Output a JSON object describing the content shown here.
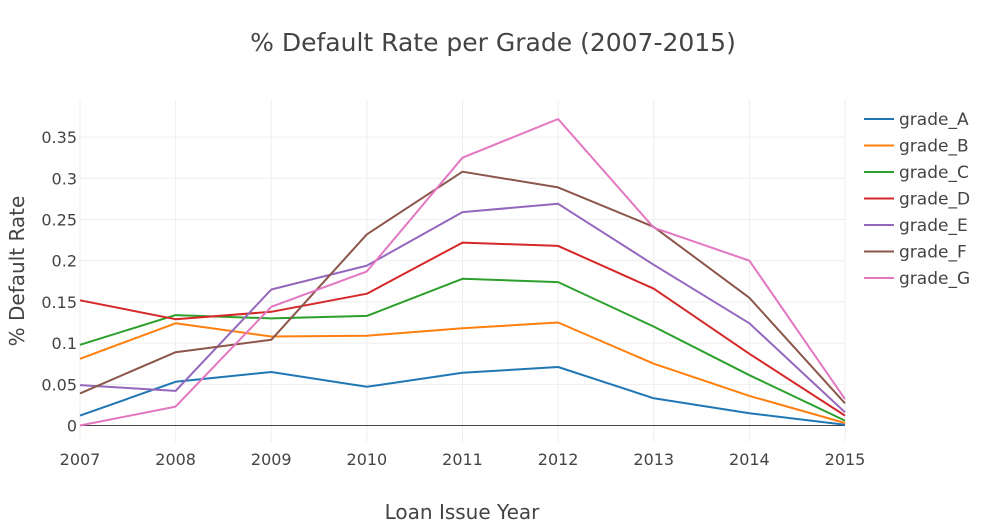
{
  "chart_data": {
    "type": "line",
    "title": "% Default Rate per Grade (2007-2015)",
    "xlabel": "Loan Issue Year",
    "ylabel": "% Default Rate",
    "x": [
      2007,
      2008,
      2009,
      2010,
      2011,
      2012,
      2013,
      2014,
      2015
    ],
    "x_ticks": [
      "2007",
      "2008",
      "2009",
      "2010",
      "2011",
      "2012",
      "2013",
      "2014",
      "2015"
    ],
    "xlim": [
      2007,
      2015
    ],
    "ylim": [
      -0.02,
      0.395
    ],
    "y_ticks": [
      0,
      0.05,
      0.1,
      0.15,
      0.2,
      0.25,
      0.3,
      0.35
    ],
    "y_tick_labels": [
      "0",
      "0.05",
      "0.1",
      "0.15",
      "0.2",
      "0.25",
      "0.3",
      "0.35"
    ],
    "grid": true,
    "legend_position": "right",
    "series": [
      {
        "name": "grade_A",
        "color": "#1f77b4",
        "values": [
          0.012,
          0.053,
          0.065,
          0.047,
          0.064,
          0.071,
          0.033,
          0.015,
          0.001
        ]
      },
      {
        "name": "grade_B",
        "color": "#ff7f0e",
        "values": [
          0.081,
          0.124,
          0.108,
          0.109,
          0.118,
          0.125,
          0.075,
          0.036,
          0.003
        ]
      },
      {
        "name": "grade_C",
        "color": "#2ca02c",
        "values": [
          0.098,
          0.134,
          0.13,
          0.133,
          0.178,
          0.174,
          0.12,
          0.061,
          0.006
        ]
      },
      {
        "name": "grade_D",
        "color": "#d62728",
        "values": [
          0.152,
          0.129,
          0.138,
          0.16,
          0.222,
          0.218,
          0.166,
          0.087,
          0.012
        ]
      },
      {
        "name": "grade_E",
        "color": "#9467bd",
        "values": [
          0.049,
          0.042,
          0.165,
          0.194,
          0.259,
          0.269,
          0.195,
          0.124,
          0.016
        ]
      },
      {
        "name": "grade_F",
        "color": "#8c564b",
        "values": [
          0.039,
          0.089,
          0.104,
          0.232,
          0.308,
          0.289,
          0.241,
          0.155,
          0.027
        ]
      },
      {
        "name": "grade_G",
        "color": "#e377c2",
        "values": [
          0.0,
          0.023,
          0.144,
          0.187,
          0.325,
          0.372,
          0.24,
          0.2,
          0.032
        ]
      }
    ]
  }
}
